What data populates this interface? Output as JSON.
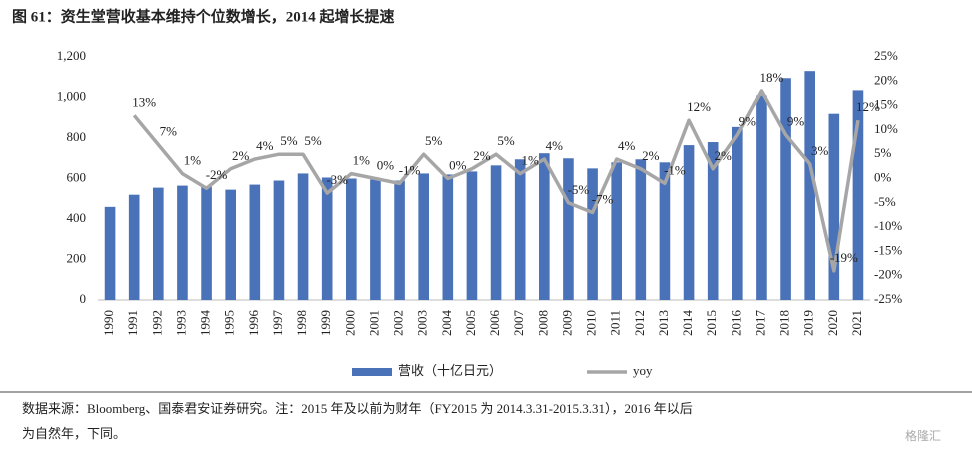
{
  "chart_data": {
    "type": "bar-line",
    "title": "图 61：资生堂营收基本维持个位数增长，2014 起增长提速",
    "categories": [
      "1990",
      "1991",
      "1992",
      "1993",
      "1994",
      "1995",
      "1996",
      "1997",
      "1998",
      "1999",
      "2000",
      "2001",
      "2002",
      "2003",
      "2004",
      "2005",
      "2006",
      "2007",
      "2008",
      "2009",
      "2010",
      "2011",
      "2012",
      "2013",
      "2014",
      "2015",
      "2016",
      "2017",
      "2018",
      "2019",
      "2020",
      "2021"
    ],
    "series": [
      {
        "name": "营收（十亿日元）",
        "type": "bar",
        "color": "#4a72b8",
        "values": [
          460,
          520,
          555,
          565,
          560,
          545,
          570,
          590,
          625,
          605,
          600,
          595,
          590,
          625,
          620,
          635,
          665,
          695,
          725,
          700,
          650,
          680,
          695,
          680,
          765,
          780,
          855,
          1010,
          1095,
          1130,
          920,
          1035
        ]
      },
      {
        "name": "yoy",
        "type": "line",
        "axis": "y2",
        "color": "#a6a6a6",
        "values": [
          null,
          13,
          7,
          1,
          -2,
          2,
          4,
          5,
          5,
          -3,
          1,
          0,
          -1,
          5,
          0,
          2,
          5,
          1,
          4,
          -5,
          -7,
          4,
          2,
          -1,
          12,
          2,
          9,
          18,
          9,
          3,
          -19,
          12
        ],
        "value_labels": [
          null,
          "13%",
          "7%",
          "1%",
          "-2%",
          "2%",
          "4%",
          "5%",
          "5%",
          "-3%",
          "1%",
          "0%",
          "-1%",
          "5%",
          "0%",
          "2%",
          "5%",
          "1%",
          "4%",
          "-5%",
          "-7%",
          "4%",
          "2%",
          "-1%",
          "12%",
          "2%",
          "9%",
          "18%",
          "9%",
          "3%",
          "-19%",
          "12%"
        ]
      }
    ],
    "ylim": [
      0,
      1200
    ],
    "yticks": [
      0,
      200,
      400,
      600,
      800,
      {
        "value": 1000,
        "label": "1,000"
      },
      {
        "value": 1200,
        "label": "1,200"
      }
    ],
    "y2lim": [
      -25,
      25
    ],
    "y2ticks": [
      {
        "value": -25,
        "label": "-25%"
      },
      {
        "value": -20,
        "label": "-20%"
      },
      {
        "value": -15,
        "label": "-15%"
      },
      {
        "value": -10,
        "label": "-10%"
      },
      {
        "value": -5,
        "label": "-5%"
      },
      {
        "value": 0,
        "label": "0%"
      },
      {
        "value": 5,
        "label": "5%"
      },
      {
        "value": 10,
        "label": "10%"
      },
      {
        "value": 15,
        "label": "15%"
      },
      {
        "value": 20,
        "label": "20%"
      },
      {
        "value": 25,
        "label": "25%"
      }
    ],
    "source": [
      "数据来源：Bloomberg、国泰君安证券研究。注：2015 年及以前为财年（FY2015 为 2014.3.31-2015.3.31），2016 年以后",
      "为自然年，下同。"
    ],
    "watermark": "格隆汇"
  }
}
